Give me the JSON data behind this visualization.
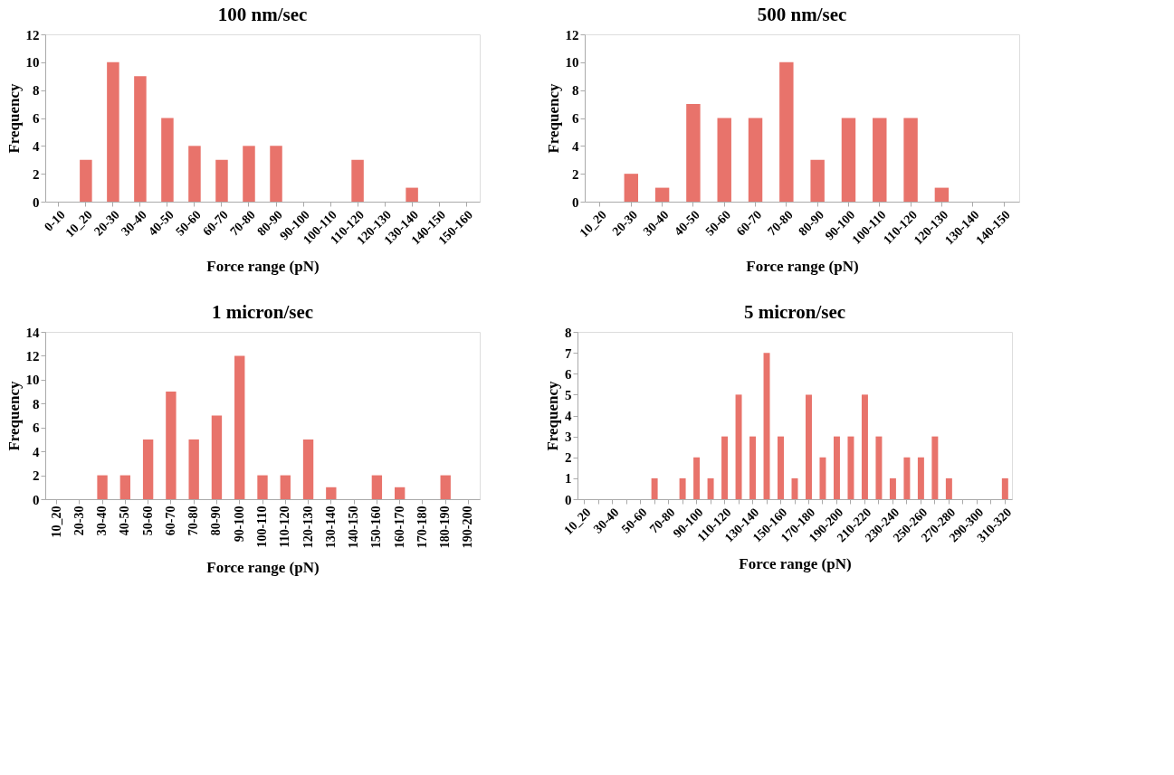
{
  "chart_data": [
    {
      "type": "bar",
      "title": "100 nm/sec",
      "xlabel": "Force range (pN)",
      "ylabel": "Frequency",
      "color": "#e8736b",
      "grid": false,
      "categories": [
        "0-10",
        "10_20",
        "20-30",
        "30-40",
        "40-50",
        "50-60",
        "60-70",
        "70-80",
        "80-90",
        "90-100",
        "100-110",
        "110-120",
        "120-130",
        "130-140",
        "140-150",
        "150-160"
      ],
      "values": [
        0,
        3,
        10,
        9,
        6,
        4,
        3,
        4,
        4,
        0,
        0,
        3,
        0,
        1,
        0,
        0
      ],
      "ylim": [
        0,
        12
      ],
      "yticks": [
        0,
        2,
        4,
        6,
        8,
        10,
        12
      ]
    },
    {
      "type": "bar",
      "title": "500 nm/sec",
      "xlabel": "Force range (pN)",
      "ylabel": "Frequency",
      "color": "#e8736b",
      "grid": false,
      "categories": [
        "10_20",
        "20-30",
        "30-40",
        "40-50",
        "50-60",
        "60-70",
        "70-80",
        "80-90",
        "90-100",
        "100-110",
        "110-120",
        "120-130",
        "130-140",
        "140-150"
      ],
      "values": [
        0,
        2,
        1,
        7,
        6,
        6,
        10,
        3,
        6,
        6,
        6,
        1,
        0,
        0
      ],
      "ylim": [
        0,
        12
      ],
      "yticks": [
        0,
        2,
        4,
        6,
        8,
        10,
        12
      ]
    },
    {
      "type": "bar",
      "title": "1 micron/sec",
      "xlabel": "Force range (pN)",
      "ylabel": "Frequency",
      "color": "#e8736b",
      "grid": false,
      "categories": [
        "10_20",
        "20-30",
        "30-40",
        "40-50",
        "50-60",
        "60-70",
        "70-80",
        "80-90",
        "90-100",
        "100-110",
        "110-120",
        "120-130",
        "130-140",
        "140-150",
        "150-160",
        "160-170",
        "170-180",
        "180-190",
        "190-200"
      ],
      "values": [
        0,
        0,
        2,
        2,
        5,
        9,
        5,
        7,
        12,
        2,
        2,
        5,
        1,
        0,
        2,
        1,
        0,
        2,
        0
      ],
      "ylim": [
        0,
        14
      ],
      "yticks": [
        0,
        2,
        4,
        6,
        8,
        10,
        12,
        14
      ]
    },
    {
      "type": "bar",
      "title": "5 micron/sec",
      "xlabel": "Force range (pN)",
      "ylabel": "Frequency",
      "color": "#e8736b",
      "grid": false,
      "categories": [
        "10_20",
        null,
        "30-40",
        null,
        "50-60",
        null,
        "70-80",
        null,
        "90-100",
        null,
        "110-120",
        null,
        "130-140",
        null,
        "150-160",
        null,
        "170-180",
        null,
        "190-200",
        null,
        "210-220",
        null,
        "230-240",
        null,
        "250-260",
        null,
        "270-280",
        null,
        "290-300",
        null,
        "310-320"
      ],
      "values": [
        0,
        0,
        0,
        0,
        0,
        1,
        0,
        1,
        2,
        1,
        3,
        5,
        3,
        7,
        3,
        1,
        5,
        2,
        3,
        3,
        5,
        3,
        1,
        2,
        2,
        3,
        1,
        0,
        0,
        0,
        1
      ],
      "ylim": [
        0,
        8
      ],
      "yticks": [
        0,
        1,
        2,
        3,
        4,
        5,
        6,
        7,
        8
      ]
    }
  ]
}
